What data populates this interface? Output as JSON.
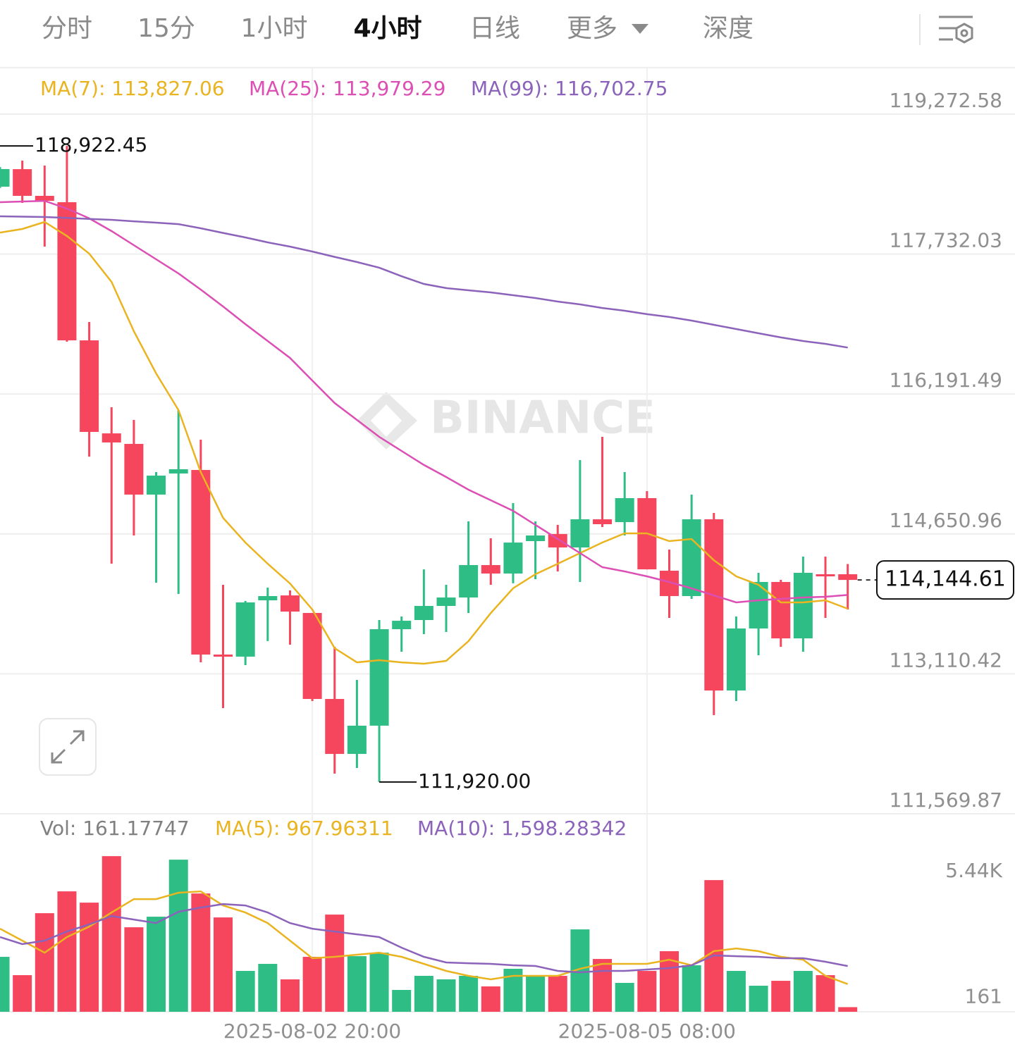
{
  "header": {
    "tabs": [
      "分时",
      "15分",
      "1小时",
      "4小时",
      "日线",
      "更多",
      "深度"
    ],
    "active": 3
  },
  "watermark": "BINANCE",
  "chart_data": [
    {
      "type": "candlestick",
      "categories": [
        null,
        null,
        null,
        null,
        null,
        null,
        null,
        null,
        null,
        null,
        null,
        null,
        null,
        null,
        "2025-08-02 20:00",
        null,
        null,
        null,
        null,
        null,
        null,
        null,
        null,
        null,
        null,
        null,
        null,
        null,
        null,
        "2025-08-05 08:00",
        null,
        null,
        null,
        null,
        null,
        null,
        null,
        null,
        null
      ],
      "open": [
        118474,
        118667,
        118373,
        118303,
        116782,
        115758,
        115642,
        115084,
        115316,
        115355,
        113323,
        113300,
        113920,
        113974,
        113781,
        112834,
        112229,
        112540,
        113602,
        113703,
        113858,
        113951,
        114308,
        114215,
        114572,
        114650,
        114502,
        114812,
        114781,
        115045,
        114246,
        113967,
        114812,
        112927,
        113610,
        114122,
        113501,
        114207,
        114207
      ],
      "high": [
        118690,
        118761,
        118706,
        118922.45,
        116984,
        116046,
        115906,
        115332,
        116015,
        115689,
        114091,
        113913,
        114060,
        114029,
        113781,
        113408,
        113044,
        113703,
        113742,
        114261,
        114091,
        114789,
        114603,
        114991,
        114789,
        114750,
        115464,
        115720,
        115332,
        115123,
        114479,
        115084,
        114882,
        113742,
        114223,
        114145,
        114401,
        114401,
        114320
      ],
      "low": [
        118460,
        118295,
        117814,
        116767,
        115502,
        114324,
        114634,
        114114,
        113990,
        113238,
        112733,
        113207,
        113471,
        113432,
        112811,
        112012,
        112074,
        111920,
        113354,
        113548,
        113571,
        113781,
        114091,
        114107,
        114153,
        114238,
        114122,
        114727,
        114634,
        114261,
        113726,
        113936,
        112656,
        112811,
        113315,
        113408,
        113354,
        113726,
        113819
      ],
      "close": [
        118668,
        118373,
        118318,
        116782,
        115774,
        115658,
        115084,
        115293,
        115363,
        113323,
        113300,
        113897,
        113967,
        113796,
        112834,
        112229,
        112540,
        113602,
        113695,
        113858,
        113951,
        114308,
        114215,
        114556,
        114634,
        114502,
        114812,
        114758,
        115045,
        114261,
        113967,
        114812,
        112927,
        113610,
        114122,
        113501,
        114223,
        114184,
        114144.61
      ],
      "up_color": "#2ebd85",
      "down_color": "#f6465d",
      "series": [
        {
          "name": "MA(7): 113,827.06",
          "color": "#e9b420",
          "values": [
            117969,
            118008,
            118086,
            117931,
            117737,
            117426,
            116883,
            116418,
            116015,
            115332,
            114828,
            114556,
            114323,
            114106,
            113819,
            113393,
            113237,
            113261,
            113237,
            113222,
            113253,
            113470,
            113780,
            114052,
            114207,
            114323,
            114440,
            114556,
            114657,
            114657,
            114572,
            114595,
            114362,
            114184,
            114091,
            113897,
            113897,
            113920,
            113827.06
          ]
        },
        {
          "name": "MA(25): 113,979.29",
          "color": "#dc4fb4",
          "values": [
            118303,
            118311,
            118318,
            118233,
            118125,
            117985,
            117830,
            117675,
            117519,
            117341,
            117155,
            116961,
            116775,
            116589,
            116340,
            116092,
            115906,
            115720,
            115565,
            115410,
            115278,
            115138,
            115022,
            114905,
            114750,
            114595,
            114440,
            114285,
            114238,
            114184,
            114122,
            114052,
            113974,
            113897,
            113920,
            113936,
            113951,
            113959,
            113979.29
          ]
        },
        {
          "name": "MA(99): 116,702.75",
          "color": "#8c63ba",
          "values": [
            118148,
            118144,
            118140,
            118130,
            118119,
            118109,
            118093,
            118078,
            118062,
            118016,
            117965,
            117915,
            117861,
            117814,
            117760,
            117701,
            117644,
            117582,
            117488,
            117403,
            117357,
            117333,
            117310,
            117279,
            117248,
            117209,
            117178,
            117139,
            117108,
            117070,
            117039,
            117000,
            116953,
            116907,
            116860,
            116814,
            116775,
            116744,
            116702.75
          ]
        }
      ],
      "ylim": [
        111569.87,
        119776.77
      ],
      "yticks": [
        {
          "value": 111569.87,
          "label": "111,569.87"
        },
        {
          "value": 113110.42,
          "label": "113,110.42"
        },
        {
          "value": 114650.96,
          "label": "114,650.96"
        },
        {
          "value": 116191.49,
          "label": "116,191.49"
        },
        {
          "value": 117732.03,
          "label": "117,732.03"
        },
        {
          "value": 119272.58,
          "label": "119,272.58"
        }
      ],
      "grid": true,
      "high_label": {
        "value": 118922.45,
        "label": "118,922.45"
      },
      "low_label": {
        "value": 111920,
        "label": "111,920.00"
      },
      "last_price": {
        "value": 114144.61,
        "label": "114,144.61"
      }
    },
    {
      "type": "bar",
      "title": "Vol: 161.17747",
      "values": [
        1919,
        1279,
        3444,
        4207,
        3813,
        5437,
        2952,
        3321,
        5314,
        4133,
        3296,
        1427,
        1673,
        1132,
        1919,
        3395,
        1943,
        2066,
        763,
        1255,
        1132,
        1255,
        886,
        1501,
        1255,
        1255,
        2878,
        1845,
        1009,
        1427,
        2116,
        1624,
        4600,
        1427,
        910,
        1082,
        1427,
        1279,
        161.17747
      ],
      "series": [
        {
          "name": "MA(5): 967.96311",
          "color": "#e9b420",
          "values": [
            2903,
            2485,
            2066,
            2608,
            2977,
            3469,
            3936,
            3936,
            4157,
            4207,
            3715,
            3469,
            3100,
            2485,
            1870,
            1919,
            1993,
            2066,
            1919,
            1673,
            1427,
            1255,
            1132,
            1255,
            1255,
            1255,
            1501,
            1673,
            1673,
            1673,
            1820,
            1624,
            2116,
            2214,
            2116,
            1919,
            1820,
            1255,
            967.96311
          ]
        },
        {
          "name": "MA(10): 1,598.28342",
          "color": "#8c63ba",
          "values": [
            2608,
            2362,
            2485,
            2804,
            3050,
            3346,
            3223,
            3100,
            3493,
            3641,
            3764,
            3715,
            3469,
            3100,
            2903,
            2804,
            2706,
            2608,
            2239,
            1919,
            1722,
            1697,
            1673,
            1624,
            1599,
            1427,
            1378,
            1427,
            1427,
            1476,
            1525,
            1624,
            1968,
            1943,
            1919,
            1870,
            1870,
            1747,
            1598.28342
          ]
        }
      ],
      "ylim": [
        0,
        5440
      ],
      "yticks": [
        {
          "value": 5440,
          "label": "5.44K"
        },
        161
      ]
    }
  ]
}
